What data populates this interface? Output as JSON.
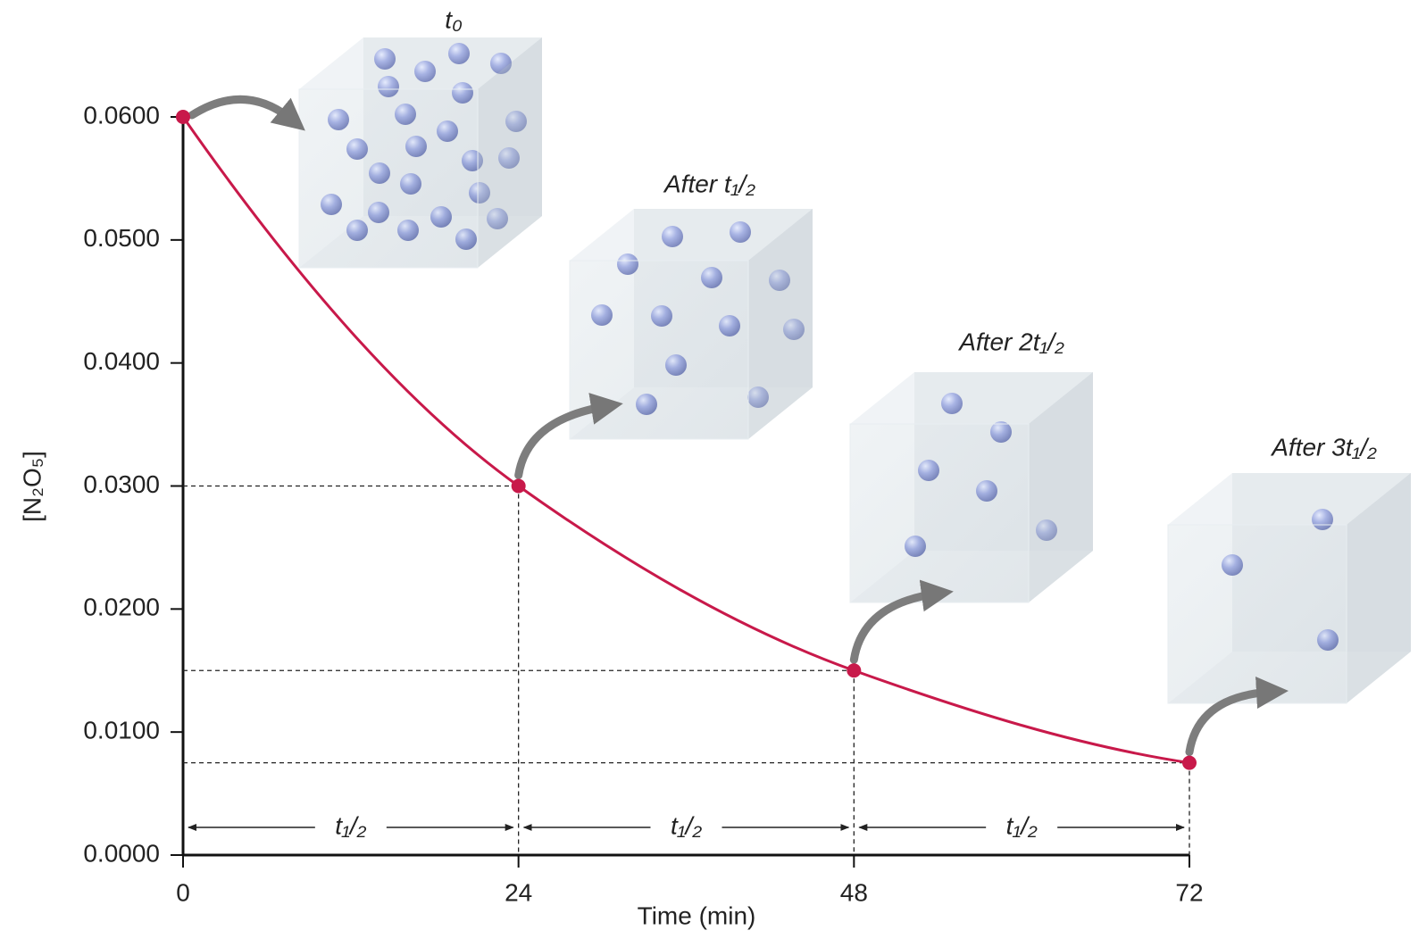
{
  "chart_data": {
    "type": "line",
    "x": [
      0,
      24,
      48,
      72
    ],
    "series": [
      {
        "color": "#c8194a",
        "values": [
          0.06,
          0.03,
          0.015,
          0.0075
        ]
      }
    ],
    "xlim": [
      0,
      72
    ],
    "xticks": [
      0,
      24,
      48,
      72
    ],
    "ylim": [
      0,
      0.06
    ],
    "yticks": [
      {
        "value": 0,
        "label": "0.0000"
      },
      {
        "value": 0.01,
        "label": "0.0100"
      },
      {
        "value": 0.02,
        "label": "0.0200"
      },
      {
        "value": 0.03,
        "label": "0.0300"
      },
      {
        "value": 0.04,
        "label": "0.0400"
      },
      {
        "value": 0.05,
        "label": "0.0500"
      },
      {
        "value": 0.06,
        "label": "0.0600"
      }
    ],
    "xlabel": "Time (min)",
    "ylabel": "[N₂O₅]",
    "annotations": [
      "t₀",
      "After t₁/₂",
      "After 2t₁/₂",
      "After 3t₁/₂"
    ],
    "interval_labels": [
      "t₁/₂",
      "t₁/₂",
      "t₁/₂"
    ]
  }
}
